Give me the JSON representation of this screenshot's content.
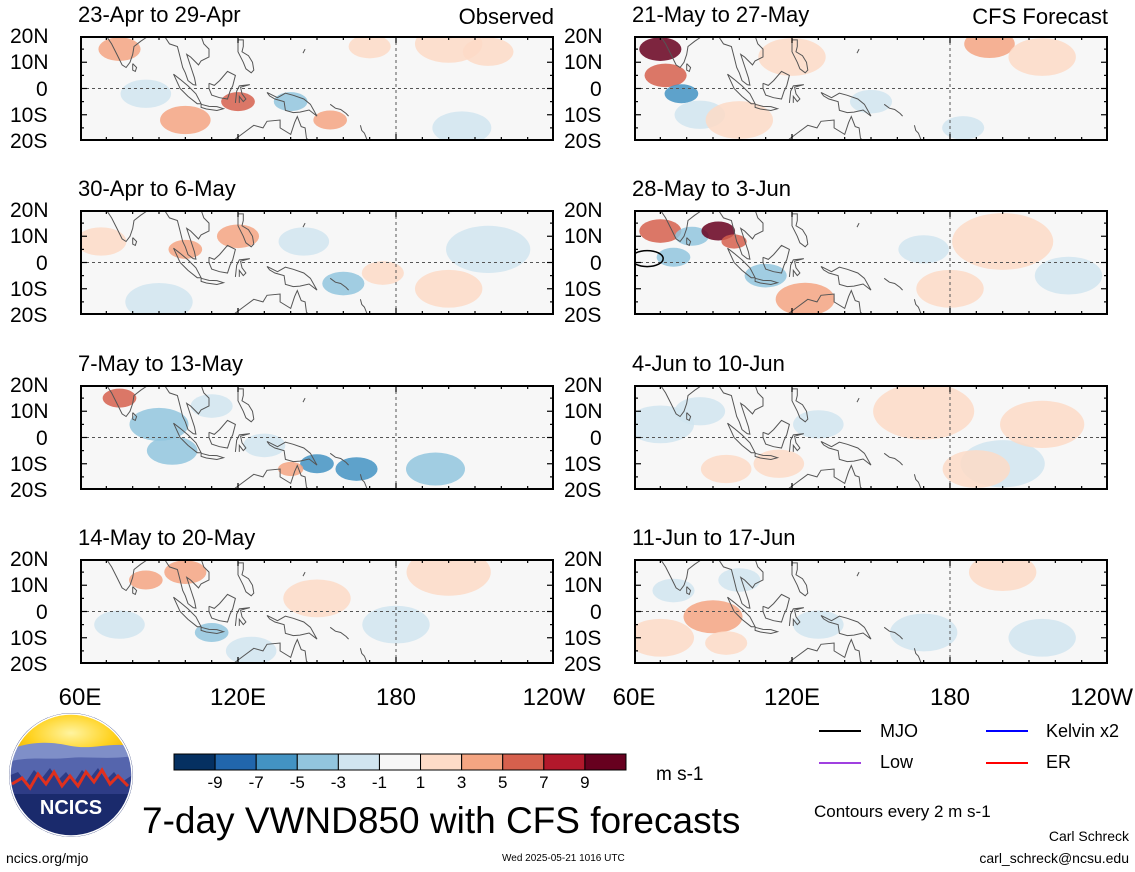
{
  "observed_label": "Observed",
  "forecast_label": "CFS Forecast",
  "lat_labels": [
    "20N",
    "10N",
    "0",
    "10S",
    "20S"
  ],
  "lon_labels": [
    "60E",
    "120E",
    "180",
    "120W"
  ],
  "panels_observed": [
    {
      "title": "23-Apr to 29-Apr"
    },
    {
      "title": "30-Apr to 6-May"
    },
    {
      "title": "7-May to 13-May"
    },
    {
      "title": "14-May to 20-May"
    }
  ],
  "panels_forecast": [
    {
      "title": "21-May to 27-May"
    },
    {
      "title": "28-May to 3-Jun"
    },
    {
      "title": "4-Jun to 10-Jun"
    },
    {
      "title": "11-Jun to 17-Jun"
    }
  ],
  "colorbar": {
    "ticks": [
      "-9",
      "-7",
      "-5",
      "-3",
      "-1",
      "1",
      "3",
      "5",
      "7",
      "9"
    ],
    "colors": [
      "#053061",
      "#2166ac",
      "#4393c3",
      "#92c5de",
      "#d1e5f0",
      "#f7f7f7",
      "#fddbc7",
      "#f4a582",
      "#d6604d",
      "#b2182b",
      "#67001f"
    ],
    "units": "m s-1"
  },
  "legend": {
    "items": [
      {
        "label": "MJO",
        "color": "#000000"
      },
      {
        "label": "Kelvin x2",
        "color": "#0000ff"
      },
      {
        "label": "Low",
        "color": "#a040e0"
      },
      {
        "label": "ER",
        "color": "#ff0000"
      }
    ],
    "contours_note": "Contours every 2 m s-1"
  },
  "footer": {
    "main_title": "7-day VWND850 with CFS forecasts",
    "logo_text": "NCICS",
    "url": "ncics.org/mjo",
    "timestamp": "Wed 2025-05-21 1016 UTC",
    "author": "Carl Schreck",
    "email": "carl_schreck@ncsu.edu"
  },
  "chart_data": {
    "type": "heatmap",
    "variable": "VWND850",
    "units": "m s-1",
    "x_ticks": [
      "60E",
      "120E",
      "180",
      "120W"
    ],
    "y_ticks": [
      "20N",
      "10N",
      "0",
      "10S",
      "20S"
    ],
    "colorbar_levels": [
      -9,
      -7,
      -5,
      -3,
      -1,
      1,
      3,
      5,
      7,
      9
    ],
    "panels": [
      {
        "title": "23-Apr to 29-Apr",
        "group": "Observed"
      },
      {
        "title": "30-Apr to 6-May",
        "group": "Observed"
      },
      {
        "title": "7-May to 13-May",
        "group": "Observed"
      },
      {
        "title": "14-May to 20-May",
        "group": "Observed"
      },
      {
        "title": "21-May to 27-May",
        "group": "CFS Forecast"
      },
      {
        "title": "28-May to 3-Jun",
        "group": "CFS Forecast"
      },
      {
        "title": "4-Jun to 10-Jun",
        "group": "CFS Forecast"
      },
      {
        "title": "11-Jun to 17-Jun",
        "group": "CFS Forecast"
      }
    ]
  }
}
